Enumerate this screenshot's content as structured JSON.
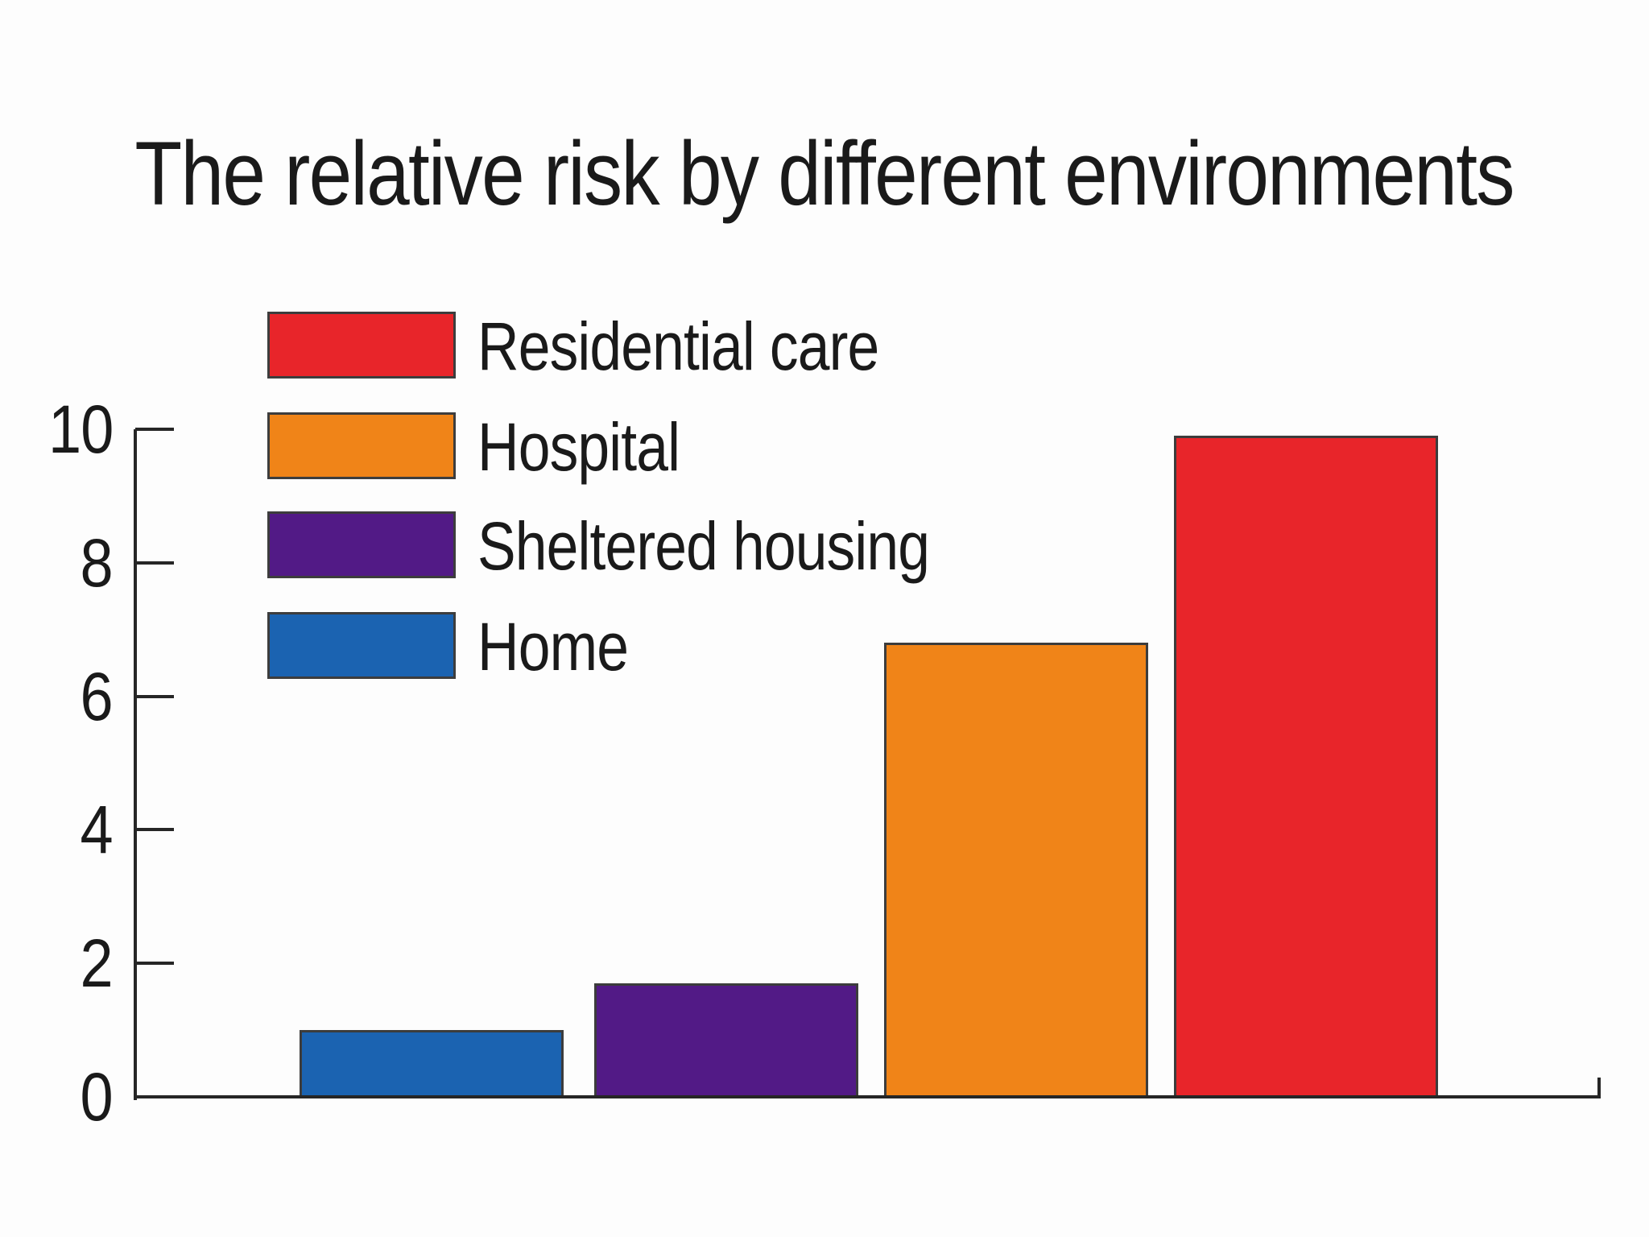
{
  "title": "The relative risk by different environments",
  "chart_data": {
    "type": "bar",
    "title": "The relative risk by different environments",
    "categories": [
      "Home",
      "Sheltered housing",
      "Hospital",
      "Residential care"
    ],
    "values": [
      1.0,
      1.7,
      6.8,
      9.9
    ],
    "bar_colors": [
      "#1b63b1",
      "#521a86",
      "#f08418",
      "#e8252a"
    ],
    "xlabel": "",
    "ylabel": "",
    "ylim": [
      0,
      10
    ],
    "yticks": [
      0,
      2,
      4,
      6,
      8,
      10
    ],
    "grid": false,
    "legend_position": "upper left inside plot",
    "legend": [
      {
        "label": "Residential care",
        "color": "#e8252a"
      },
      {
        "label": "Hospital",
        "color": "#f08418"
      },
      {
        "label": "Sheltered housing",
        "color": "#521a86"
      },
      {
        "label": "Home",
        "color": "#1b63b1"
      }
    ]
  },
  "colors": {
    "text": "#1a1a1a",
    "axis": "#262626",
    "bar_edge": "#3c3c3c",
    "background": "#fdfdfd"
  }
}
